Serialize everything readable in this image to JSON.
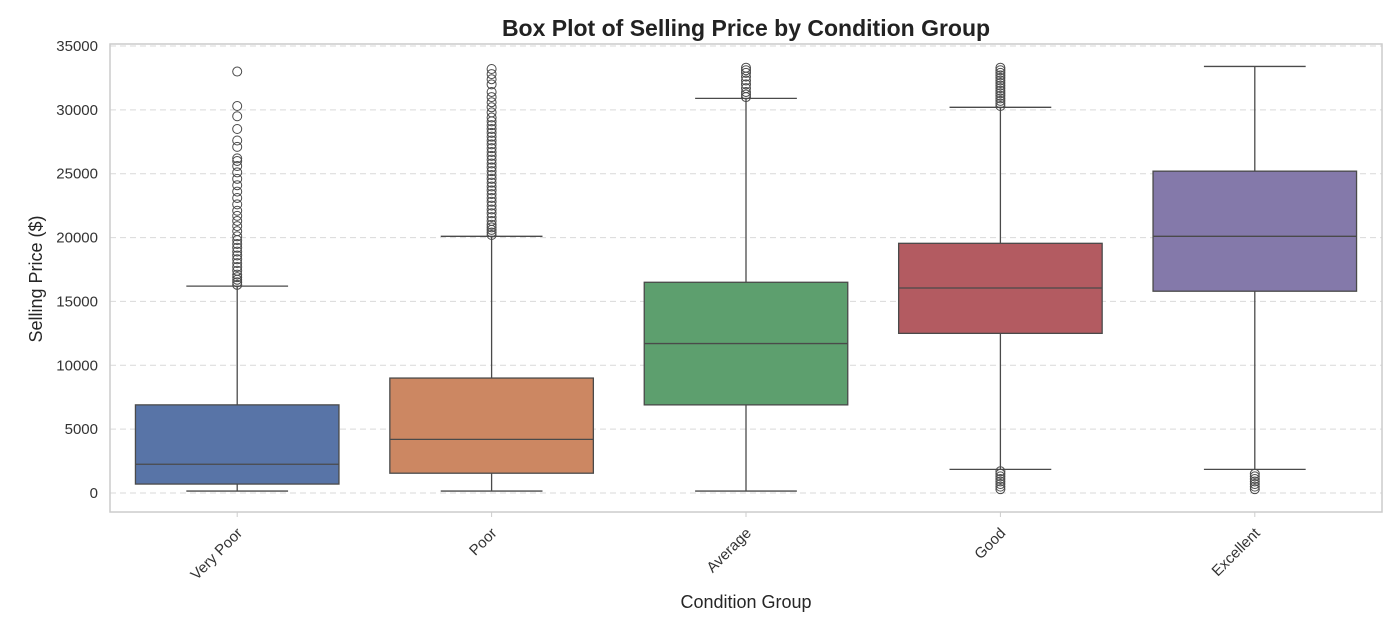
{
  "chart_data": {
    "type": "box",
    "title": "Box Plot of Selling Price by Condition Group",
    "xlabel": "Condition Group",
    "ylabel": "Selling Price ($)",
    "ylim": [
      -1500,
      35000
    ],
    "yticks": [
      0,
      5000,
      10000,
      15000,
      20000,
      25000,
      30000,
      35000
    ],
    "ytick_labels": [
      "0",
      "5000",
      "10000",
      "15000",
      "20000",
      "25000",
      "30000",
      "35000"
    ],
    "grid": true,
    "legend": "none",
    "categories": [
      "Very Poor",
      "Poor",
      "Average",
      "Good",
      "Excellent"
    ],
    "colors": [
      "#5874a7",
      "#cc8762",
      "#5d9f6e",
      "#b35b61",
      "#8479aa"
    ],
    "boxes": [
      {
        "category": "Very Poor",
        "whisker_low": 150,
        "q1": 700,
        "median": 2250,
        "q3": 6900,
        "whisker_high": 16200,
        "outliers": [
          16300,
          16500,
          16700,
          16900,
          17100,
          17400,
          17700,
          18000,
          18300,
          18600,
          18900,
          19200,
          19500,
          19800,
          20100,
          20500,
          20900,
          21300,
          21700,
          22100,
          22600,
          23100,
          23600,
          24100,
          24600,
          25100,
          25600,
          26000,
          26200,
          27100,
          27600,
          28500,
          29500,
          30300,
          33000
        ]
      },
      {
        "category": "Poor",
        "whisker_low": 150,
        "q1": 1550,
        "median": 4200,
        "q3": 9000,
        "whisker_high": 20100,
        "outliers": [
          20200,
          20400,
          20600,
          20800,
          21000,
          21300,
          21600,
          21900,
          22200,
          22500,
          22800,
          23100,
          23400,
          23700,
          24000,
          24300,
          24600,
          24900,
          25200,
          25500,
          25800,
          26100,
          26400,
          26700,
          27000,
          27300,
          27600,
          27900,
          28200,
          28500,
          28800,
          29100,
          29400,
          29800,
          30200,
          30600,
          31000,
          31400,
          32000,
          32400,
          32800,
          33200
        ]
      },
      {
        "category": "Average",
        "whisker_low": 150,
        "q1": 6900,
        "median": 11700,
        "q3": 16500,
        "whisker_high": 30900,
        "outliers": [
          31000,
          31200,
          31400,
          31700,
          32000,
          32300,
          32600,
          32900,
          33100,
          33300
        ]
      },
      {
        "category": "Good",
        "whisker_low": 1850,
        "q1": 12500,
        "median": 16050,
        "q3": 19550,
        "whisker_high": 30200,
        "outliers": [
          300,
          500,
          700,
          900,
          1100,
          1300,
          1500,
          1700,
          30300,
          30500,
          30700,
          30900,
          31100,
          31300,
          31500,
          31700,
          31900,
          32100,
          32300,
          32500,
          32700,
          32900,
          33100,
          33300
        ]
      },
      {
        "category": "Excellent",
        "whisker_low": 1850,
        "q1": 15800,
        "median": 20100,
        "q3": 25200,
        "whisker_high": 33400,
        "outliers": [
          300,
          500,
          700,
          900,
          1100,
          1300,
          1500
        ]
      }
    ]
  }
}
